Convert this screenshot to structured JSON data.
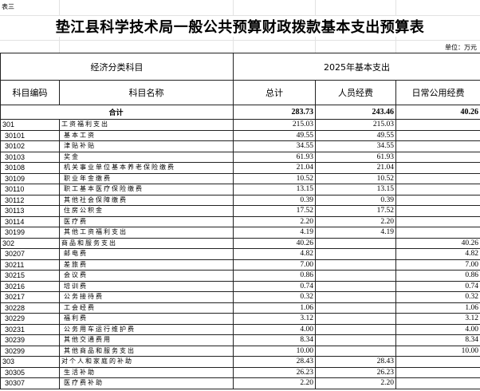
{
  "sheet_label": "表三",
  "title": "垫江县科学技术局一般公共预算财政拨款基本支出预算表",
  "unit": "单位：万元",
  "header": {
    "group_left": "经济分类科目",
    "group_right": "2025年基本支出",
    "code": "科目编码",
    "name": "科目名称",
    "total": "总计",
    "personnel": "人员经费",
    "public": "日常公用经费"
  },
  "total_row": {
    "label": "合计",
    "total": "283.73",
    "personnel": "243.46",
    "public": "40.26"
  },
  "rows": [
    {
      "code": "301",
      "name": "工资福利支出",
      "total": "215.03",
      "personnel": "215.03",
      "public": "",
      "level": 1
    },
    {
      "code": "30101",
      "name": "基本工资",
      "total": "49.55",
      "personnel": "49.55",
      "public": "",
      "level": 2
    },
    {
      "code": "30102",
      "name": "津贴补贴",
      "total": "34.55",
      "personnel": "34.55",
      "public": "",
      "level": 2
    },
    {
      "code": "30103",
      "name": "奖金",
      "total": "61.93",
      "personnel": "61.93",
      "public": "",
      "level": 2
    },
    {
      "code": "30108",
      "name": "机关事业单位基本养老保险缴费",
      "total": "21.04",
      "personnel": "21.04",
      "public": "",
      "level": 2
    },
    {
      "code": "30109",
      "name": "职业年金缴费",
      "total": "10.52",
      "personnel": "10.52",
      "public": "",
      "level": 2
    },
    {
      "code": "30110",
      "name": "职工基本医疗保险缴费",
      "total": "13.15",
      "personnel": "13.15",
      "public": "",
      "level": 2
    },
    {
      "code": "30112",
      "name": "其他社会保障缴费",
      "total": "0.39",
      "personnel": "0.39",
      "public": "",
      "level": 2
    },
    {
      "code": "30113",
      "name": "住房公积金",
      "total": "17.52",
      "personnel": "17.52",
      "public": "",
      "level": 2
    },
    {
      "code": "30114",
      "name": "医疗费",
      "total": "2.20",
      "personnel": "2.20",
      "public": "",
      "level": 2
    },
    {
      "code": "30199",
      "name": "其他工资福利支出",
      "total": "4.19",
      "personnel": "4.19",
      "public": "",
      "level": 2
    },
    {
      "code": "302",
      "name": "商品和服务支出",
      "total": "40.26",
      "personnel": "",
      "public": "40.26",
      "level": 1
    },
    {
      "code": "30207",
      "name": "邮电费",
      "total": "4.82",
      "personnel": "",
      "public": "4.82",
      "level": 2
    },
    {
      "code": "30211",
      "name": "差旅费",
      "total": "7.00",
      "personnel": "",
      "public": "7.00",
      "level": 2
    },
    {
      "code": "30215",
      "name": "会议费",
      "total": "0.86",
      "personnel": "",
      "public": "0.86",
      "level": 2
    },
    {
      "code": "30216",
      "name": "培训费",
      "total": "0.74",
      "personnel": "",
      "public": "0.74",
      "level": 2
    },
    {
      "code": "30217",
      "name": "公务接待费",
      "total": "0.32",
      "personnel": "",
      "public": "0.32",
      "level": 2
    },
    {
      "code": "30228",
      "name": "工会经费",
      "total": "1.06",
      "personnel": "",
      "public": "1.06",
      "level": 2
    },
    {
      "code": "30229",
      "name": "福利费",
      "total": "3.12",
      "personnel": "",
      "public": "3.12",
      "level": 2
    },
    {
      "code": "30231",
      "name": "公务用车运行维护费",
      "total": "4.00",
      "personnel": "",
      "public": "4.00",
      "level": 2
    },
    {
      "code": "30239",
      "name": "其他交通费用",
      "total": "8.34",
      "personnel": "",
      "public": "8.34",
      "level": 2
    },
    {
      "code": "30299",
      "name": "其他商品和服务支出",
      "total": "10.00",
      "personnel": "",
      "public": "10.00",
      "level": 2
    },
    {
      "code": "303",
      "name": "对个人和家庭的补助",
      "total": "28.43",
      "personnel": "28.43",
      "public": "",
      "level": 1
    },
    {
      "code": "30305",
      "name": "生活补助",
      "total": "26.23",
      "personnel": "26.23",
      "public": "",
      "level": 2
    },
    {
      "code": "30307",
      "name": "医疗费补助",
      "total": "2.20",
      "personnel": "2.20",
      "public": "",
      "level": 2
    }
  ]
}
